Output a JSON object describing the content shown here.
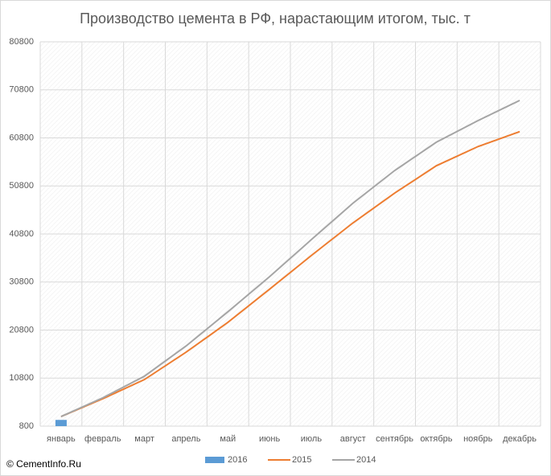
{
  "chart_data": {
    "type": "line",
    "title": "Производство цемента в РФ, нарастающим итогом, тыс. т",
    "categories": [
      "январь",
      "февраль",
      "март",
      "апрель",
      "май",
      "июнь",
      "июль",
      "август",
      "сентябрь",
      "октябрь",
      "ноябрь",
      "декабрь"
    ],
    "series": [
      {
        "name": "2016",
        "type": "bar",
        "color": "#5b9bd5",
        "values": [
          2100,
          null,
          null,
          null,
          null,
          null,
          null,
          null,
          null,
          null,
          null,
          null
        ]
      },
      {
        "name": "2015",
        "type": "line",
        "color": "#ed7d31",
        "values": [
          2800,
          6500,
          10500,
          16200,
          22400,
          29300,
          36300,
          43100,
          49300,
          55000,
          59000,
          62100
        ]
      },
      {
        "name": "2014",
        "type": "line",
        "color": "#a5a5a5",
        "values": [
          2800,
          6700,
          11200,
          17500,
          24600,
          31900,
          39600,
          47200,
          54000,
          59900,
          64400,
          68600
        ]
      }
    ],
    "ylim": [
      800,
      80800
    ],
    "yticks": [
      800,
      10800,
      20800,
      30800,
      40800,
      50800,
      60800,
      70800,
      80800
    ],
    "grid": true,
    "legend": "bottom",
    "annotations": [
      "© CementInfo.Ru"
    ]
  }
}
